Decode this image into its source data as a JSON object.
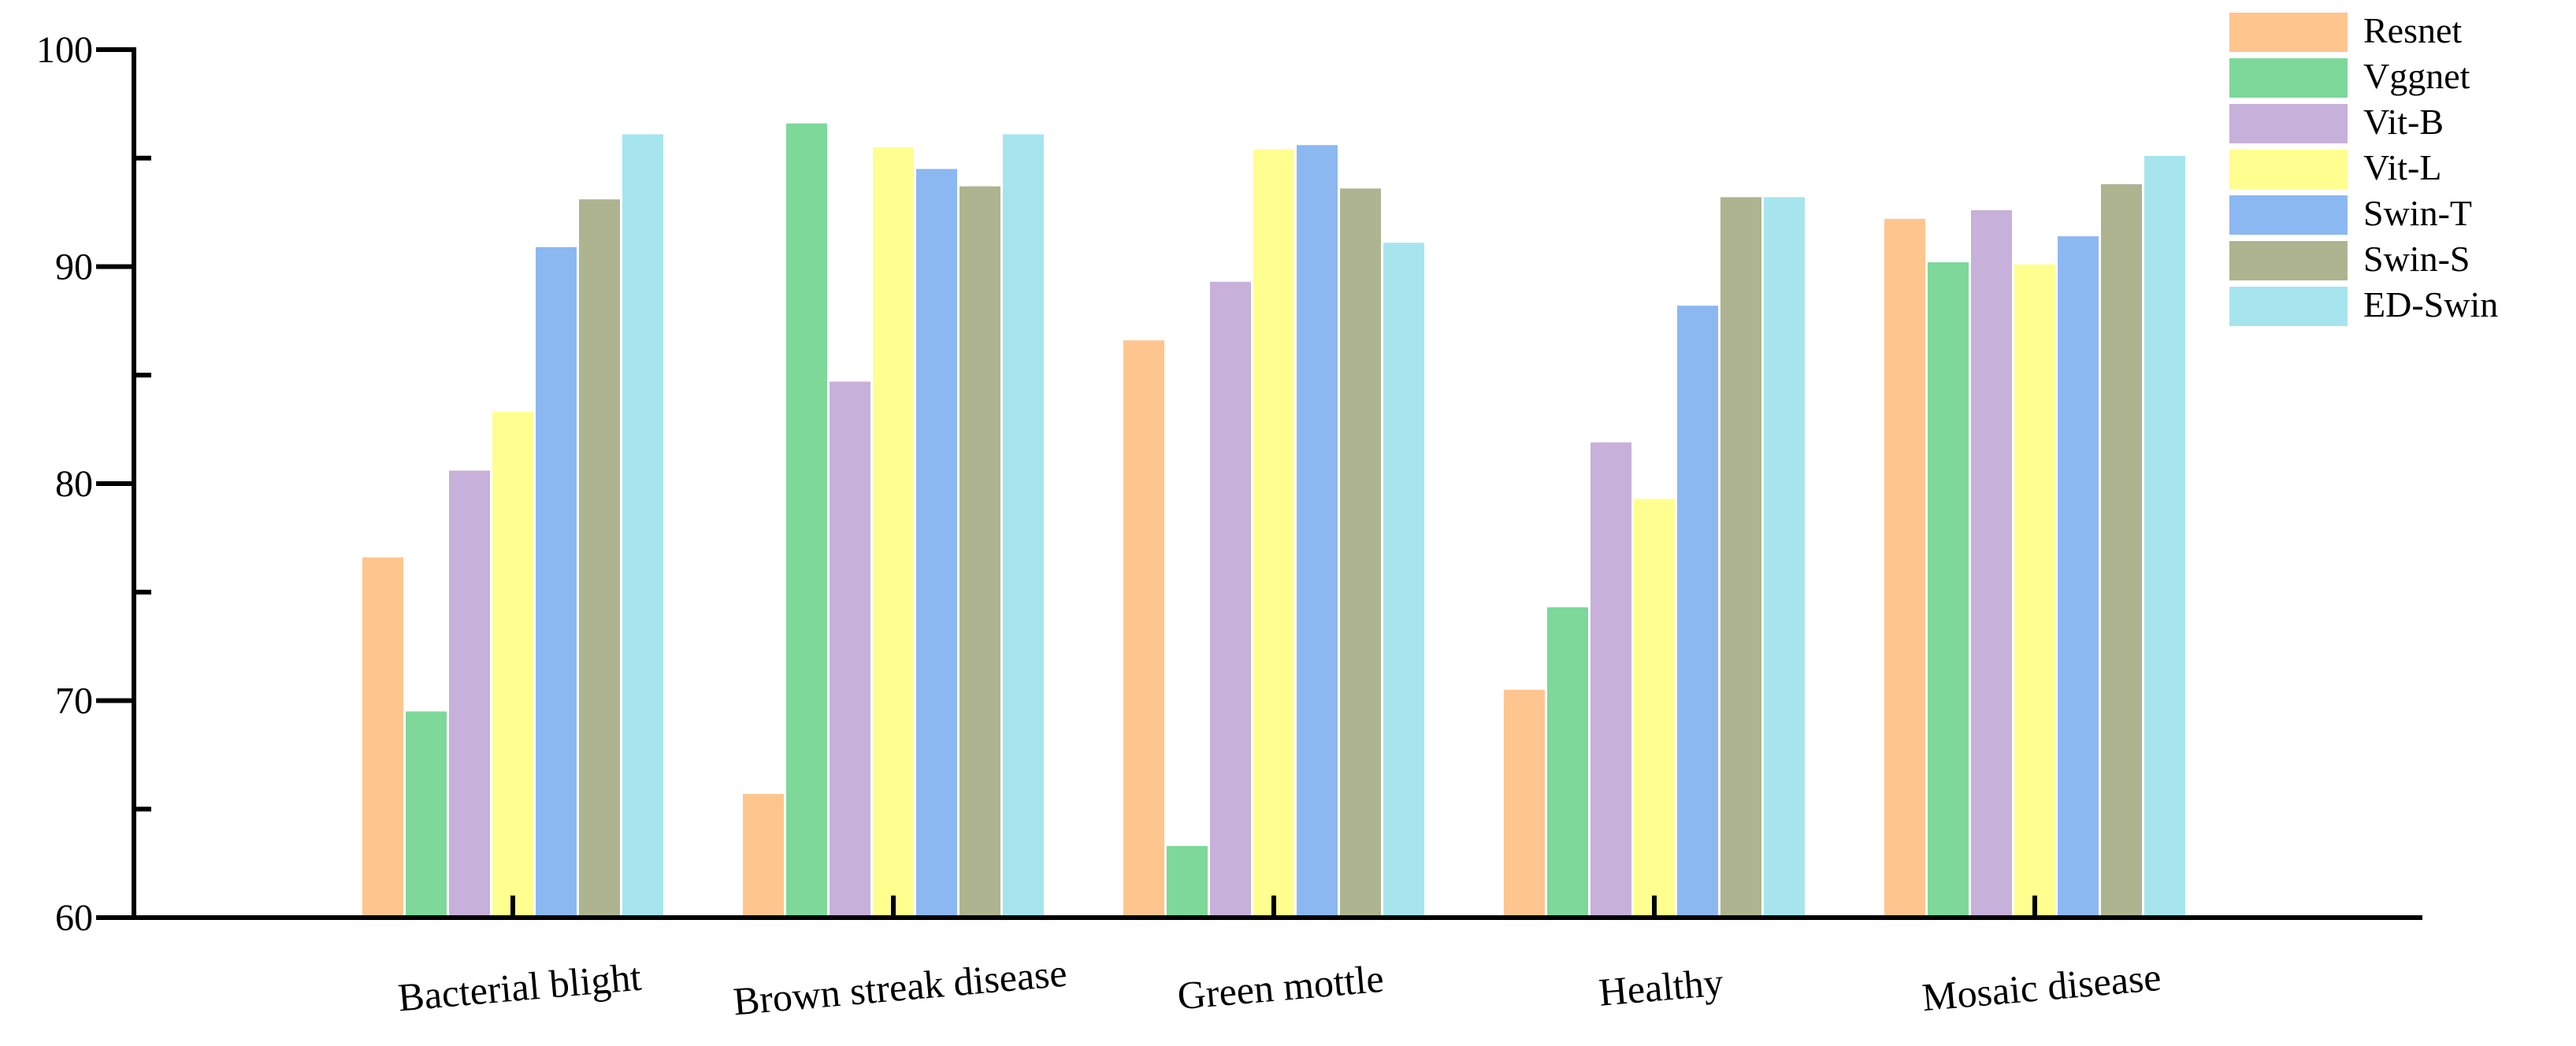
{
  "chart_data": {
    "type": "bar",
    "title": "",
    "xlabel": "",
    "ylabel": "",
    "ylim": [
      60,
      100
    ],
    "yticks": [
      60,
      70,
      80,
      90,
      100
    ],
    "legend_position": "top-right",
    "grid": false,
    "categories": [
      "Bacterial blight",
      "Brown streak disease",
      "Green mottle",
      "Healthy",
      "Mosaic disease"
    ],
    "series": [
      {
        "name": "Resnet",
        "color": "#FFC58F",
        "values": [
          76.6,
          65.7,
          86.6,
          70.5,
          92.2
        ]
      },
      {
        "name": "Vggnet",
        "color": "#7DD89A",
        "values": [
          69.5,
          96.6,
          63.3,
          74.3,
          90.2
        ]
      },
      {
        "name": "Vit-B",
        "color": "#C7B0D9",
        "values": [
          80.6,
          84.7,
          89.3,
          81.9,
          92.6
        ]
      },
      {
        "name": "Vit-L",
        "color": "#FFFF8F",
        "values": [
          83.3,
          95.5,
          95.4,
          79.3,
          90.1
        ]
      },
      {
        "name": "Swin-T",
        "color": "#8CB8F2",
        "values": [
          90.9,
          94.5,
          95.6,
          88.2,
          91.4
        ]
      },
      {
        "name": "Swin-S",
        "color": "#AEB48F",
        "values": [
          93.1,
          93.7,
          93.6,
          93.2,
          93.8
        ]
      },
      {
        "name": "ED-Swin",
        "color": "#A6E5EE",
        "values": [
          96.1,
          96.1,
          91.1,
          93.2,
          95.1
        ]
      }
    ]
  }
}
